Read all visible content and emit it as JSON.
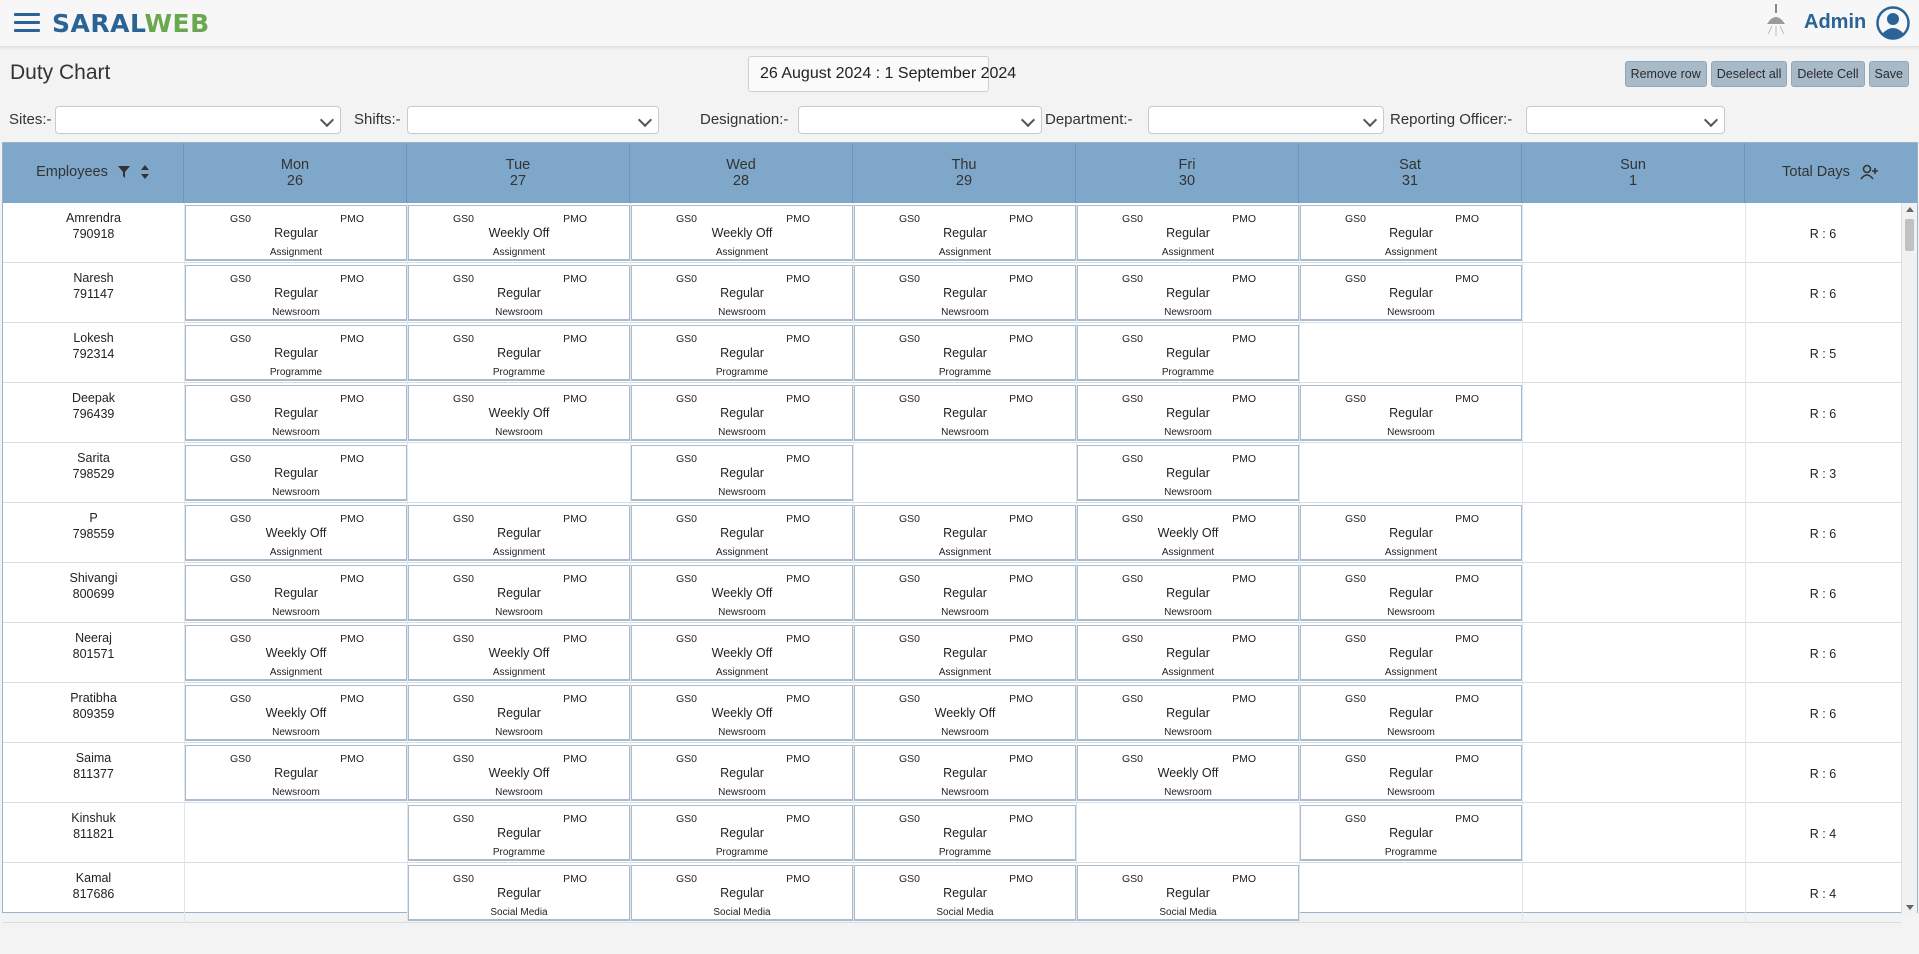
{
  "app": {
    "logo_part1": "SARAL",
    "logo_part2": "WEB",
    "user": "Admin"
  },
  "page": {
    "title": "Duty Chart",
    "date_range": "26 August 2024 : 1 September 2024"
  },
  "actions": [
    "Remove row",
    "Deselect all",
    "Delete Cell",
    "Save"
  ],
  "filters": [
    {
      "label": "Sites:-",
      "value": ""
    },
    {
      "label": "Shifts:-",
      "value": ""
    },
    {
      "label": "Designation:-",
      "value": ""
    },
    {
      "label": "Department:-",
      "value": ""
    },
    {
      "label": "Reporting Officer:-",
      "value": ""
    }
  ],
  "header": {
    "employees": "Employees",
    "days": [
      {
        "day": "Mon",
        "date": "26"
      },
      {
        "day": "Tue",
        "date": "27"
      },
      {
        "day": "Wed",
        "date": "28"
      },
      {
        "day": "Thu",
        "date": "29"
      },
      {
        "day": "Fri",
        "date": "30"
      },
      {
        "day": "Sat",
        "date": "31"
      },
      {
        "day": "Sun",
        "date": "1"
      }
    ],
    "total": "Total Days"
  },
  "rows": [
    {
      "name": "Amrendra",
      "id": "790918",
      "total": "R : 6",
      "cells": [
        {
          "type": "Regular",
          "dept": "Assignment"
        },
        {
          "type": "Weekly Off",
          "dept": "Assignment"
        },
        {
          "type": "Weekly Off",
          "dept": "Assignment"
        },
        {
          "type": "Regular",
          "dept": "Assignment"
        },
        {
          "type": "Regular",
          "dept": "Assignment"
        },
        {
          "type": "Regular",
          "dept": "Assignment"
        },
        null
      ]
    },
    {
      "name": "Naresh",
      "id": "791147",
      "total": "R : 6",
      "cells": [
        {
          "type": "Regular",
          "dept": "Newsroom"
        },
        {
          "type": "Regular",
          "dept": "Newsroom"
        },
        {
          "type": "Regular",
          "dept": "Newsroom"
        },
        {
          "type": "Regular",
          "dept": "Newsroom"
        },
        {
          "type": "Regular",
          "dept": "Newsroom"
        },
        {
          "type": "Regular",
          "dept": "Newsroom"
        },
        null
      ]
    },
    {
      "name": "Lokesh",
      "id": "792314",
      "total": "R : 5",
      "cells": [
        {
          "type": "Regular",
          "dept": "Programme"
        },
        {
          "type": "Regular",
          "dept": "Programme"
        },
        {
          "type": "Regular",
          "dept": "Programme"
        },
        {
          "type": "Regular",
          "dept": "Programme"
        },
        {
          "type": "Regular",
          "dept": "Programme"
        },
        null,
        null
      ]
    },
    {
      "name": "Deepak",
      "id": "796439",
      "total": "R : 6",
      "cells": [
        {
          "type": "Regular",
          "dept": "Newsroom"
        },
        {
          "type": "Weekly Off",
          "dept": "Newsroom"
        },
        {
          "type": "Regular",
          "dept": "Newsroom"
        },
        {
          "type": "Regular",
          "dept": "Newsroom"
        },
        {
          "type": "Regular",
          "dept": "Newsroom"
        },
        {
          "type": "Regular",
          "dept": "Newsroom"
        },
        null
      ]
    },
    {
      "name": "Sarita",
      "id": "798529",
      "total": "R : 3",
      "cells": [
        {
          "type": "Regular",
          "dept": "Newsroom"
        },
        null,
        {
          "type": "Regular",
          "dept": "Newsroom"
        },
        null,
        {
          "type": "Regular",
          "dept": "Newsroom"
        },
        null,
        null
      ]
    },
    {
      "name": "P",
      "id": "798559",
      "total": "R : 6",
      "cells": [
        {
          "type": "Weekly Off",
          "dept": "Assignment"
        },
        {
          "type": "Regular",
          "dept": "Assignment"
        },
        {
          "type": "Regular",
          "dept": "Assignment"
        },
        {
          "type": "Regular",
          "dept": "Assignment"
        },
        {
          "type": "Weekly Off",
          "dept": "Assignment"
        },
        {
          "type": "Regular",
          "dept": "Assignment"
        },
        null
      ]
    },
    {
      "name": "Shivangi",
      "id": "800699",
      "total": "R : 6",
      "cells": [
        {
          "type": "Regular",
          "dept": "Newsroom"
        },
        {
          "type": "Regular",
          "dept": "Newsroom"
        },
        {
          "type": "Weekly Off",
          "dept": "Newsroom"
        },
        {
          "type": "Regular",
          "dept": "Newsroom"
        },
        {
          "type": "Regular",
          "dept": "Newsroom"
        },
        {
          "type": "Regular",
          "dept": "Newsroom"
        },
        null
      ]
    },
    {
      "name": "Neeraj",
      "id": "801571",
      "total": "R : 6",
      "cells": [
        {
          "type": "Weekly Off",
          "dept": "Assignment"
        },
        {
          "type": "Weekly Off",
          "dept": "Assignment"
        },
        {
          "type": "Weekly Off",
          "dept": "Assignment"
        },
        {
          "type": "Regular",
          "dept": "Assignment"
        },
        {
          "type": "Regular",
          "dept": "Assignment"
        },
        {
          "type": "Regular",
          "dept": "Assignment"
        },
        null
      ]
    },
    {
      "name": "Pratibha",
      "id": "809359",
      "total": "R : 6",
      "cells": [
        {
          "type": "Weekly Off",
          "dept": "Newsroom"
        },
        {
          "type": "Regular",
          "dept": "Newsroom"
        },
        {
          "type": "Weekly Off",
          "dept": "Newsroom"
        },
        {
          "type": "Weekly Off",
          "dept": "Newsroom"
        },
        {
          "type": "Regular",
          "dept": "Newsroom"
        },
        {
          "type": "Regular",
          "dept": "Newsroom"
        },
        null
      ]
    },
    {
      "name": "Saima",
      "id": "811377",
      "total": "R : 6",
      "cells": [
        {
          "type": "Regular",
          "dept": "Newsroom"
        },
        {
          "type": "Weekly Off",
          "dept": "Newsroom"
        },
        {
          "type": "Regular",
          "dept": "Newsroom"
        },
        {
          "type": "Regular",
          "dept": "Newsroom"
        },
        {
          "type": "Weekly Off",
          "dept": "Newsroom"
        },
        {
          "type": "Regular",
          "dept": "Newsroom"
        },
        null
      ]
    },
    {
      "name": "Kinshuk",
      "id": "811821",
      "total": "R : 4",
      "cells": [
        null,
        {
          "type": "Regular",
          "dept": "Programme"
        },
        {
          "type": "Regular",
          "dept": "Programme"
        },
        {
          "type": "Regular",
          "dept": "Programme"
        },
        null,
        {
          "type": "Regular",
          "dept": "Programme"
        },
        null
      ]
    },
    {
      "name": "Kamal",
      "id": "817686",
      "total": "R : 4",
      "cells": [
        null,
        {
          "type": "Regular",
          "dept": "Social Media"
        },
        {
          "type": "Regular",
          "dept": "Social Media"
        },
        {
          "type": "Regular",
          "dept": "Social Media"
        },
        {
          "type": "Regular",
          "dept": "Social Media"
        },
        null,
        null
      ]
    }
  ],
  "shift_code": "GS0",
  "shift_location": "PMO",
  "icons": {
    "menu": "hamburger-icon",
    "lamp": "lamp-icon",
    "user": "user-circle-icon",
    "filter": "funnel-icon",
    "sort": "sort-icon",
    "add_user": "add-user-icon"
  },
  "colors": {
    "brand_blue": "#2a6496",
    "brand_green": "#6aa84f",
    "header_bg": "#7fa7c9",
    "button_bg": "#a8b9c8"
  }
}
